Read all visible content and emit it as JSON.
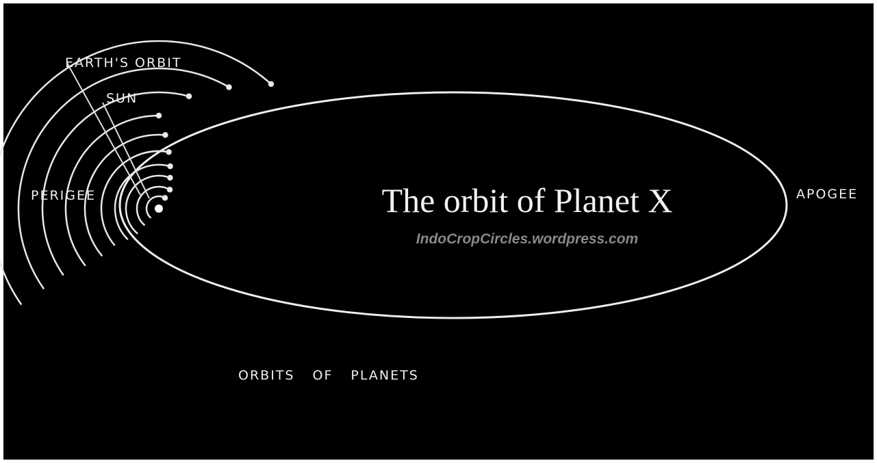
{
  "title": "The orbit of Planet X",
  "watermark": "IndoCropCircles.wordpress.com",
  "labels": {
    "earths_orbit": "EARTH'S ORBIT",
    "sun": "SUN",
    "perigee": "PERIGEE",
    "apogee": "APOGEE",
    "orbits_of_planets": "ORBITS OF PLANETS"
  }
}
